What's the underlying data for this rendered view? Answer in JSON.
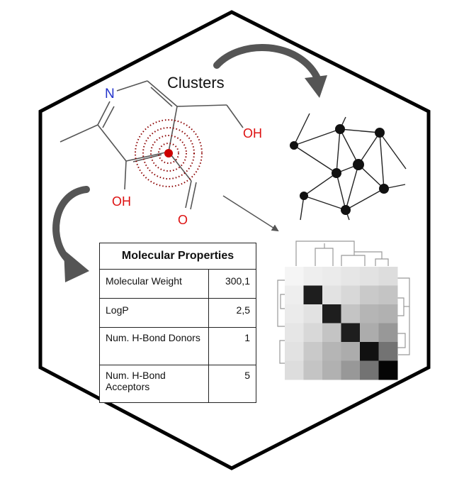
{
  "labels": {
    "clusters": "Clusters",
    "nitrogen": "N",
    "hydroxyl_top": "OH",
    "hydroxyl_bottom": "OH",
    "oxygen": "O"
  },
  "properties_table": {
    "title": "Molecular Properties",
    "rows": [
      {
        "name": "Molecular Weight",
        "value": "300,1"
      },
      {
        "name": "LogP",
        "value": "2,5"
      },
      {
        "name": "Num. H-Bond Donors",
        "value": "1"
      },
      {
        "name": "Num. H-Bond Acceptors",
        "value": "5"
      }
    ]
  },
  "heatmap": {
    "size": 6,
    "values": [
      [
        0.02,
        0.05,
        0.06,
        0.08,
        0.1,
        0.12
      ],
      [
        0.05,
        0.9,
        0.1,
        0.14,
        0.2,
        0.22
      ],
      [
        0.06,
        0.1,
        0.9,
        0.22,
        0.28,
        0.3
      ],
      [
        0.08,
        0.14,
        0.22,
        0.9,
        0.32,
        0.4
      ],
      [
        0.1,
        0.2,
        0.28,
        0.32,
        0.95,
        0.55
      ],
      [
        0.12,
        0.22,
        0.3,
        0.4,
        0.55,
        1.0
      ]
    ]
  },
  "colors": {
    "nitrogen": "#2233cc",
    "oxygen": "#dd1111",
    "target": "#cc0000",
    "rings": "#8b0000",
    "arrow": "#555555",
    "outline": "#000000"
  }
}
